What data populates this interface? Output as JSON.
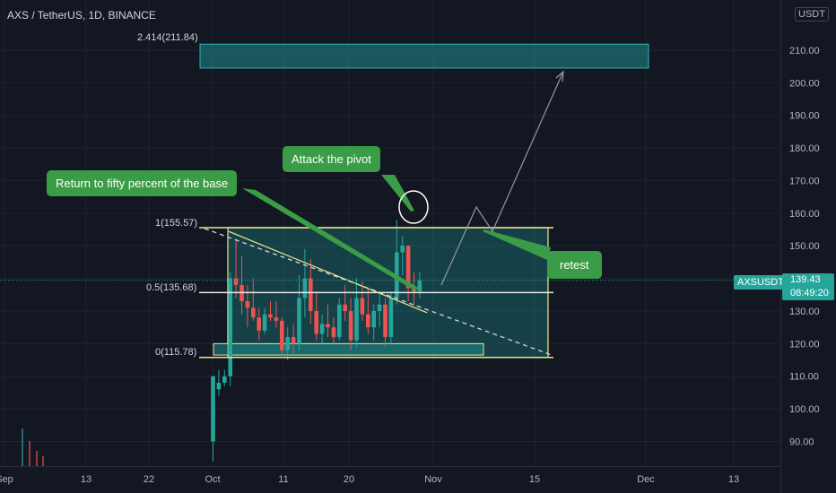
{
  "header": {
    "title": "AXS / TetherUS, 1D, BINANCE",
    "unit": "USDT"
  },
  "colors": {
    "up": "#26a69a",
    "down": "#ef5350",
    "zone": "#1e8d8d",
    "fib": "#f0e68c",
    "callout": "#3a9c46"
  },
  "annotations": {
    "return_fifty": "Return to fifty percent of the base",
    "attack_pivot": "Attack the pivot",
    "retest": "retest"
  },
  "fib_levels": [
    {
      "label": "2.414(211.84)",
      "value": 211.84
    },
    {
      "label": "1(155.57)",
      "value": 155.57
    },
    {
      "label": "0.5(135.68)",
      "value": 135.68
    },
    {
      "label": "0(115.78)",
      "value": 115.78
    }
  ],
  "last_price": {
    "symbol": "AXSUSDT",
    "price": "139.43",
    "countdown": "08:49:20"
  },
  "chart_data": {
    "type": "candlestick",
    "title": "AXS / TetherUS, 1D, BINANCE",
    "y_axis": {
      "range": [
        84,
        220
      ],
      "ticks": [
        90,
        100,
        110,
        120,
        130,
        140,
        150,
        160,
        170,
        180,
        190,
        200,
        210
      ]
    },
    "x_ticks": [
      "Sep",
      "13",
      "22",
      "Oct",
      "11",
      "20",
      "Nov",
      "15",
      "Dec",
      "13"
    ],
    "candles": [
      {
        "o": 90,
        "h": 110,
        "l": 84,
        "c": 110
      },
      {
        "o": 106,
        "h": 112,
        "l": 104,
        "c": 108
      },
      {
        "o": 108,
        "h": 112,
        "l": 107,
        "c": 110
      },
      {
        "o": 110,
        "h": 142,
        "l": 107,
        "c": 140
      },
      {
        "o": 140,
        "h": 152,
        "l": 134,
        "c": 138
      },
      {
        "o": 138,
        "h": 147,
        "l": 129,
        "c": 133
      },
      {
        "o": 133,
        "h": 138,
        "l": 125,
        "c": 131
      },
      {
        "o": 131,
        "h": 140,
        "l": 127,
        "c": 128
      },
      {
        "o": 128,
        "h": 131,
        "l": 121,
        "c": 124
      },
      {
        "o": 124,
        "h": 131,
        "l": 123,
        "c": 129
      },
      {
        "o": 129,
        "h": 133,
        "l": 127,
        "c": 128
      },
      {
        "o": 128,
        "h": 133,
        "l": 125,
        "c": 127
      },
      {
        "o": 127,
        "h": 128,
        "l": 117,
        "c": 118
      },
      {
        "o": 118,
        "h": 125,
        "l": 115,
        "c": 122
      },
      {
        "o": 122,
        "h": 126,
        "l": 117,
        "c": 120
      },
      {
        "o": 120,
        "h": 141,
        "l": 118,
        "c": 134
      },
      {
        "o": 134,
        "h": 149,
        "l": 128,
        "c": 140
      },
      {
        "o": 140,
        "h": 146,
        "l": 126,
        "c": 130
      },
      {
        "o": 130,
        "h": 136,
        "l": 121,
        "c": 123
      },
      {
        "o": 123,
        "h": 129,
        "l": 120,
        "c": 126
      },
      {
        "o": 126,
        "h": 132,
        "l": 122,
        "c": 125
      },
      {
        "o": 125,
        "h": 128,
        "l": 120,
        "c": 122
      },
      {
        "o": 122,
        "h": 134,
        "l": 121,
        "c": 132
      },
      {
        "o": 132,
        "h": 138,
        "l": 127,
        "c": 130
      },
      {
        "o": 130,
        "h": 134,
        "l": 118,
        "c": 121
      },
      {
        "o": 121,
        "h": 140,
        "l": 119,
        "c": 134
      },
      {
        "o": 134,
        "h": 139,
        "l": 127,
        "c": 129
      },
      {
        "o": 129,
        "h": 137,
        "l": 123,
        "c": 125
      },
      {
        "o": 125,
        "h": 132,
        "l": 121,
        "c": 130
      },
      {
        "o": 130,
        "h": 136,
        "l": 125,
        "c": 132
      },
      {
        "o": 132,
        "h": 134,
        "l": 119,
        "c": 122
      },
      {
        "o": 122,
        "h": 136,
        "l": 120,
        "c": 134
      },
      {
        "o": 134,
        "h": 158,
        "l": 132,
        "c": 148
      },
      {
        "o": 148,
        "h": 153,
        "l": 141,
        "c": 150
      },
      {
        "o": 150,
        "h": 150,
        "l": 133,
        "c": 137
      },
      {
        "o": 137,
        "h": 142,
        "l": 132,
        "c": 136
      },
      {
        "o": 136,
        "h": 142,
        "l": 134,
        "c": 139.43
      }
    ],
    "volume": [
      {
        "v": 0.3,
        "up": true
      },
      {
        "v": 0.2,
        "up": false
      },
      {
        "v": 0.12,
        "up": false
      },
      {
        "v": 0.08,
        "up": false
      }
    ]
  }
}
